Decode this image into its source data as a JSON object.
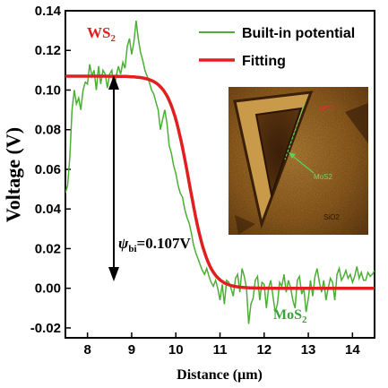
{
  "chart_data": {
    "type": "line",
    "xlabel": "Distance (μm)",
    "ylabel": "Voltage (V)",
    "xlim": [
      7.5,
      14.5
    ],
    "ylim": [
      -0.025,
      0.14
    ],
    "xticks": [
      "8",
      "9",
      "10",
      "11",
      "12",
      "13",
      "14"
    ],
    "yticks": [
      "-0.02",
      "0.00",
      "0.02",
      "0.04",
      "0.06",
      "0.08",
      "0.10",
      "0.12",
      "0.14"
    ],
    "grid": false,
    "legend": {
      "position": "top-right"
    },
    "series": [
      {
        "name": "Built-in potential",
        "color": "#4caf35",
        "x": [
          7.5,
          7.55,
          7.6,
          7.65,
          7.7,
          7.75,
          7.8,
          7.85,
          7.9,
          7.95,
          8.0,
          8.05,
          8.1,
          8.15,
          8.2,
          8.25,
          8.3,
          8.35,
          8.4,
          8.45,
          8.5,
          8.55,
          8.6,
          8.65,
          8.7,
          8.75,
          8.8,
          8.85,
          8.9,
          8.95,
          9.0,
          9.05,
          9.1,
          9.15,
          9.2,
          9.25,
          9.3,
          9.35,
          9.4,
          9.45,
          9.5,
          9.55,
          9.6,
          9.65,
          9.7,
          9.75,
          9.8,
          9.85,
          9.9,
          9.95,
          10.0,
          10.05,
          10.1,
          10.15,
          10.2,
          10.25,
          10.3,
          10.35,
          10.4,
          10.45,
          10.5,
          10.55,
          10.6,
          10.65,
          10.7,
          10.75,
          10.8,
          10.85,
          10.9,
          10.95,
          11.0,
          11.05,
          11.1,
          11.15,
          11.2,
          11.25,
          11.3,
          11.35,
          11.4,
          11.45,
          11.5,
          11.55,
          11.6,
          11.65,
          11.7,
          11.75,
          11.8,
          11.85,
          11.9,
          11.95,
          12.0,
          12.05,
          12.1,
          12.15,
          12.2,
          12.25,
          12.3,
          12.35,
          12.4,
          12.45,
          12.5,
          12.55,
          12.6,
          12.65,
          12.7,
          12.75,
          12.8,
          12.85,
          12.9,
          12.95,
          13.0,
          13.05,
          13.1,
          13.15,
          13.2,
          13.25,
          13.3,
          13.35,
          13.4,
          13.45,
          13.5,
          13.55,
          13.6,
          13.65,
          13.7,
          13.75,
          13.8,
          13.85,
          13.9,
          13.95,
          14.0,
          14.05,
          14.1,
          14.15,
          14.2,
          14.25,
          14.3,
          14.35,
          14.4,
          14.45,
          14.5
        ],
        "y": [
          0.048,
          0.052,
          0.066,
          0.09,
          0.1,
          0.093,
          0.096,
          0.09,
          0.1,
          0.104,
          0.103,
          0.113,
          0.107,
          0.11,
          0.1,
          0.112,
          0.103,
          0.11,
          0.108,
          0.101,
          0.108,
          0.11,
          0.1,
          0.107,
          0.112,
          0.108,
          0.114,
          0.111,
          0.122,
          0.126,
          0.118,
          0.124,
          0.135,
          0.126,
          0.119,
          0.115,
          0.11,
          0.107,
          0.104,
          0.1,
          0.098,
          0.094,
          0.09,
          0.08,
          0.085,
          0.09,
          0.083,
          0.072,
          0.068,
          0.062,
          0.058,
          0.052,
          0.048,
          0.046,
          0.04,
          0.036,
          0.033,
          0.028,
          0.022,
          0.018,
          0.015,
          0.012,
          0.009,
          0.007,
          0.01,
          0.006,
          0.003,
          0.001,
          0.004,
          0.0,
          -0.006,
          0.002,
          -0.008,
          0.004,
          0.003,
          0.0,
          -0.004,
          0.005,
          0.007,
          -0.002,
          0.01,
          0.006,
          0.0,
          -0.018,
          -0.008,
          -0.005,
          0.004,
          0.006,
          -0.006,
          0.003,
          0.002,
          -0.01,
          0.0,
          0.004,
          -0.004,
          -0.012,
          -0.008,
          0.003,
          0.001,
          0.007,
          -0.002,
          0.004,
          0.0,
          -0.006,
          -0.01,
          0.004,
          0.006,
          -0.003,
          0.0,
          -0.012,
          -0.005,
          0.004,
          -0.004,
          0.006,
          0.01,
          0.003,
          -0.002,
          0.004,
          -0.006,
          0.0,
          0.005,
          0.003,
          -0.006,
          0.007,
          0.01,
          0.004,
          0.006,
          0.009,
          0.005,
          0.007,
          0.003,
          0.006,
          0.011,
          0.005,
          0.008,
          0.004,
          0.004,
          0.008,
          0.006,
          0.007,
          0.009
        ]
      },
      {
        "name": "Fitting",
        "color": "#e02020",
        "model": {
          "vmax": 0.107,
          "vmin": 0.0,
          "center": 10.3,
          "width": 0.22
        }
      }
    ],
    "annotations": {
      "ws2": "WS2",
      "mos2": "MoS2",
      "psi": "ψbi=0.107V",
      "inset_ws2": "WS2",
      "inset_mos2": "MoS2",
      "inset_sio2": "SiO2"
    }
  }
}
